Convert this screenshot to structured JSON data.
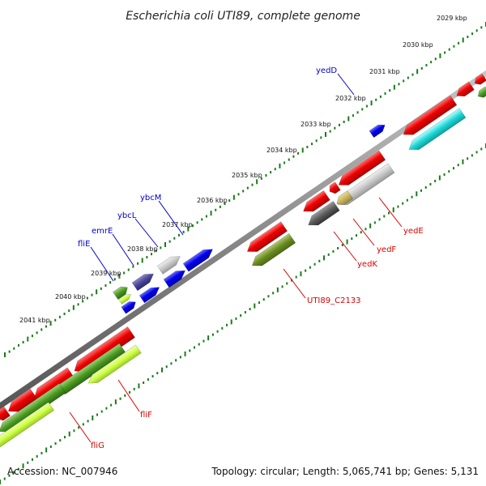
{
  "title": "Escherichia coli UTI89, complete genome",
  "footer": {
    "accession": "Accession: NC_007946",
    "summary": "Topology: circular; Length: 5,065,741 bp; Genes: 5,131"
  },
  "colors": {
    "background": "#ffffff",
    "backbone": "#8a8a8a",
    "ticks": "#1a7a1a",
    "forward_label": "#0000cc",
    "reverse_label": "#dd0000"
  },
  "tick_labels": [
    "2029 kbp",
    "2030 kbp",
    "2031 kbp",
    "2032 kbp",
    "2033 kbp",
    "2034 kbp",
    "2035 kbp",
    "2036 kbp",
    "2037 kbp",
    "2038 kbp",
    "2039 kbp",
    "2040 kbp",
    "2041 kbp"
  ],
  "forward_gene_labels": [
    "yedD",
    "ybcM",
    "ybcL",
    "emrE",
    "fliE"
  ],
  "reverse_gene_labels": [
    "yedE",
    "yedF",
    "yedK",
    "UTI89_C2133",
    "fliF",
    "fliG"
  ]
}
